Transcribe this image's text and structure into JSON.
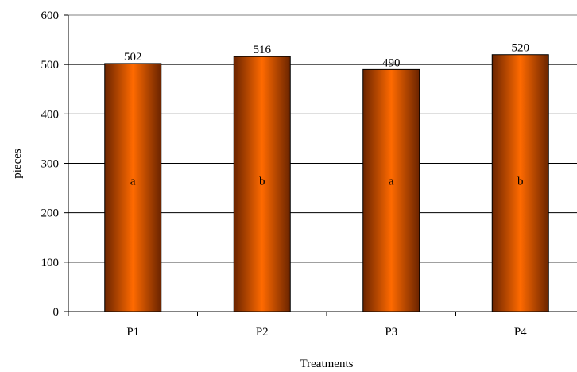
{
  "chart_data": {
    "type": "bar",
    "title": "",
    "xlabel": "Treatments",
    "ylabel": "pieces",
    "categories": [
      "P1",
      "P2",
      "P3",
      "P4"
    ],
    "series": [
      {
        "values": [
          502,
          516,
          490,
          520
        ]
      }
    ],
    "significance_letters": [
      "a",
      "b",
      "a",
      "b"
    ],
    "ylim": [
      0,
      600
    ],
    "yticks": [
      0,
      100,
      200,
      300,
      400,
      500,
      600
    ],
    "grid": "horizontal",
    "legend": "none",
    "colors": {
      "bar_center": "#ff6a00",
      "bar_edge": "#6a2400",
      "bar_outline": "#000000",
      "grid": "#000000",
      "frame": "#808080"
    }
  }
}
